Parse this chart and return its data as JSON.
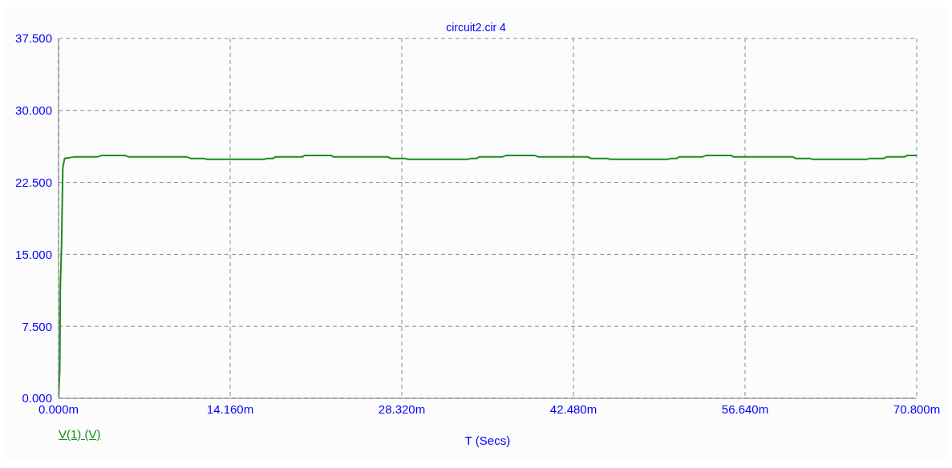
{
  "chart_data": {
    "type": "line",
    "title": "circuit2.cir 4",
    "xlabel": "T (Secs)",
    "xlim": [
      0,
      70.8
    ],
    "xticks": [
      {
        "value": 0,
        "label": "0.000m"
      },
      {
        "value": 14.16,
        "label": "14.160m"
      },
      {
        "value": 28.32,
        "label": "28.320m"
      },
      {
        "value": 42.48,
        "label": "42.480m"
      },
      {
        "value": 56.64,
        "label": "56.640m"
      },
      {
        "value": 70.8,
        "label": "70.800m"
      }
    ],
    "ylim": [
      0,
      37.5
    ],
    "yticks": [
      {
        "value": 0,
        "label": "0.000"
      },
      {
        "value": 7.5,
        "label": "7.500"
      },
      {
        "value": 15,
        "label": "15.000"
      },
      {
        "value": 22.5,
        "label": "22.500"
      },
      {
        "value": 30,
        "label": "30.000"
      },
      {
        "value": 37.5,
        "label": "37.500"
      }
    ],
    "grid": true,
    "legend": "bottom left",
    "marker": "none",
    "line_style": "solid",
    "series": [
      {
        "name": "V(1) (V)",
        "color": "#1a8c1a",
        "x": [
          0,
          0.1,
          0.15,
          0.25,
          0.35,
          0.5,
          1.26,
          3.2,
          3.5,
          5.5,
          5.8,
          10.6,
          10.9,
          12.0,
          12.2,
          17.0,
          17.2,
          17.7,
          17.9,
          20.1,
          20.3,
          22.5,
          22.7,
          27.2,
          27.4,
          28.6,
          28.8,
          33.8,
          34.0,
          34.5,
          34.7,
          36.6,
          36.9,
          39.3,
          39.6,
          43.7,
          43.9,
          45.3,
          45.5,
          50.3,
          50.5,
          51.0,
          51.2,
          53.1,
          53.4,
          55.5,
          55.7,
          60.6,
          60.8,
          62.0,
          62.2,
          66.7,
          66.9,
          68.1,
          68.3,
          69.8,
          70.0,
          70.8
        ],
        "values": [
          0,
          3,
          11.8,
          16,
          24,
          25.0,
          25.15,
          25.15,
          25.3,
          25.3,
          25.15,
          25.15,
          25.0,
          25.0,
          24.9,
          24.9,
          25.0,
          25.0,
          25.15,
          25.15,
          25.3,
          25.3,
          25.15,
          25.15,
          25.0,
          25.0,
          24.9,
          24.9,
          25.0,
          25.0,
          25.15,
          25.15,
          25.3,
          25.3,
          25.15,
          25.15,
          25.0,
          25.0,
          24.9,
          24.9,
          25.0,
          25.0,
          25.15,
          25.15,
          25.3,
          25.3,
          25.15,
          25.15,
          25.0,
          25.0,
          24.9,
          24.9,
          25.0,
          25.0,
          25.15,
          25.15,
          25.3,
          25.3
        ]
      }
    ]
  }
}
